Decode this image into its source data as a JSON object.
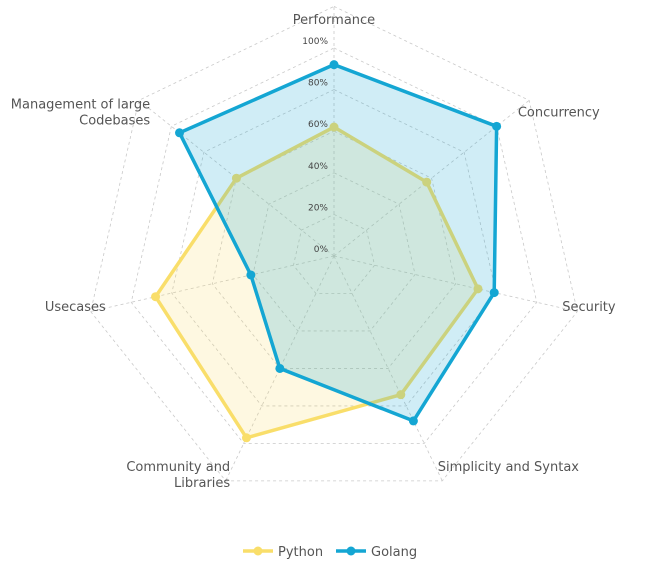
{
  "chart_data": {
    "type": "radar",
    "axes": [
      {
        "label": "Performance"
      },
      {
        "label": "Concurrency"
      },
      {
        "label": "Security"
      },
      {
        "label": "Simplicity and Syntax"
      },
      {
        "label": "Community and|Libraries"
      },
      {
        "label": "Usecases"
      },
      {
        "label": "Management of large|Codebases"
      }
    ],
    "series": [
      {
        "name": "Python",
        "color": "#F9DE6A",
        "values": [
          62,
          57,
          71,
          74,
          97,
          88,
          60
        ]
      },
      {
        "name": "Golang",
        "color": "#14A6D3",
        "values": [
          92,
          100,
          79,
          88,
          60,
          41,
          95
        ]
      }
    ],
    "r_ticks": [
      "0%",
      "20%",
      "40%",
      "60%",
      "80%",
      "100%"
    ],
    "r_range": [
      0,
      100
    ],
    "grid": true,
    "legend": {
      "position": "bottom"
    }
  }
}
